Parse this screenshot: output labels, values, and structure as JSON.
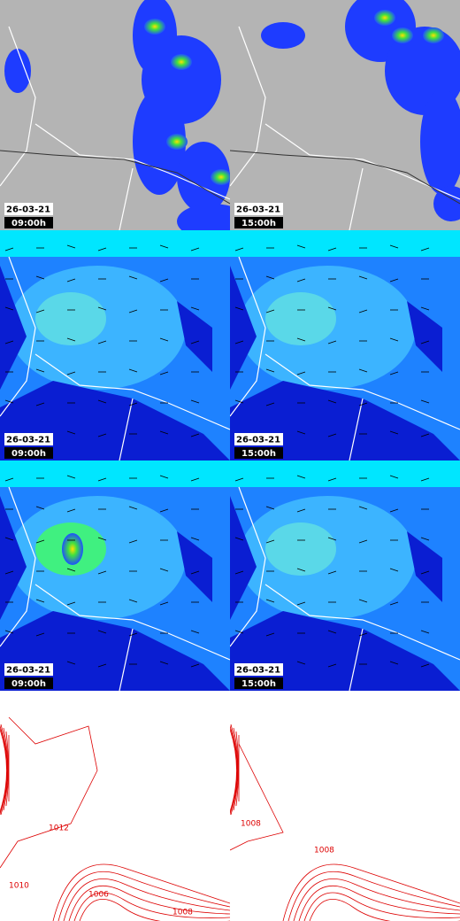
{
  "panels": [
    {
      "date": "26-03-21",
      "time": "09:00h"
    },
    {
      "date": "26-03-21",
      "time": "15:00h"
    },
    {
      "date": "26-03-21",
      "time": "09:00h"
    },
    {
      "date": "26-03-21",
      "time": "15:00h"
    },
    {
      "date": "26-03-21",
      "time": "09:00h"
    },
    {
      "date": "26-03-21",
      "time": "15:00h"
    }
  ],
  "contour_labels": {
    "left": [
      "1012",
      "1010",
      "1006",
      "1008"
    ],
    "right": [
      "1008",
      "1008"
    ]
  }
}
